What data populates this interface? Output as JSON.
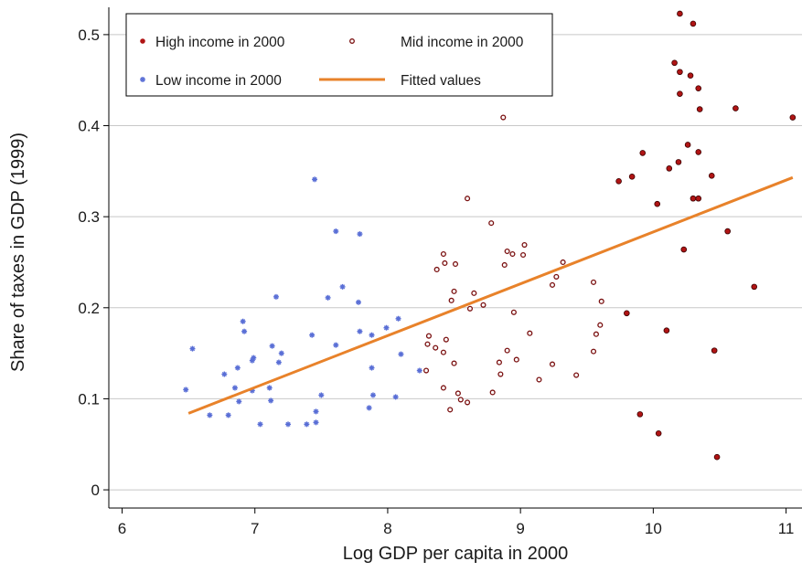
{
  "chart_data": {
    "type": "scatter",
    "xlabel": "Log GDP per capita in 2000",
    "ylabel": "Share of taxes in GDP (1999)",
    "xlim": [
      5.9,
      11.12
    ],
    "ylim": [
      -0.02,
      0.53
    ],
    "xticks": [
      "6",
      "7",
      "8",
      "9",
      "10",
      "11"
    ],
    "yticks": [
      "0",
      "0.1",
      "0.2",
      "0.3",
      "0.4",
      "0.5"
    ],
    "grid": "horizontal",
    "legend_position": "top-left",
    "colors": {
      "high": "#b01414",
      "mid": "#7a1010",
      "low": "#5a6fd6",
      "fit": "#e8822a"
    },
    "legend": [
      "High income in 2000",
      "Mid income in 2000",
      "Low income in 2000",
      "Fitted values"
    ],
    "series": [
      {
        "name": "High income in 2000",
        "marker": "filled",
        "points": [
          [
            10.2,
            0.523
          ],
          [
            10.3,
            0.512
          ],
          [
            10.16,
            0.469
          ],
          [
            10.2,
            0.459
          ],
          [
            10.28,
            0.455
          ],
          [
            10.34,
            0.441
          ],
          [
            10.2,
            0.435
          ],
          [
            10.35,
            0.418
          ],
          [
            10.62,
            0.419
          ],
          [
            11.05,
            0.409
          ],
          [
            10.26,
            0.379
          ],
          [
            9.92,
            0.37
          ],
          [
            10.34,
            0.371
          ],
          [
            10.12,
            0.353
          ],
          [
            10.19,
            0.36
          ],
          [
            9.84,
            0.344
          ],
          [
            10.44,
            0.345
          ],
          [
            9.74,
            0.339
          ],
          [
            10.3,
            0.32
          ],
          [
            10.34,
            0.32
          ],
          [
            10.03,
            0.314
          ],
          [
            10.56,
            0.284
          ],
          [
            10.23,
            0.264
          ],
          [
            10.76,
            0.223
          ],
          [
            9.8,
            0.194
          ],
          [
            10.1,
            0.175
          ],
          [
            10.46,
            0.153
          ],
          [
            9.9,
            0.083
          ],
          [
            10.04,
            0.062
          ],
          [
            10.48,
            0.036
          ]
        ]
      },
      {
        "name": "Mid income in 2000",
        "marker": "hollow",
        "points": [
          [
            8.87,
            0.409
          ],
          [
            8.6,
            0.32
          ],
          [
            8.78,
            0.293
          ],
          [
            9.03,
            0.269
          ],
          [
            8.9,
            0.262
          ],
          [
            8.94,
            0.259
          ],
          [
            9.02,
            0.258
          ],
          [
            8.42,
            0.259
          ],
          [
            8.43,
            0.249
          ],
          [
            8.51,
            0.248
          ],
          [
            8.88,
            0.247
          ],
          [
            8.37,
            0.242
          ],
          [
            9.32,
            0.25
          ],
          [
            9.27,
            0.234
          ],
          [
            9.24,
            0.225
          ],
          [
            9.55,
            0.228
          ],
          [
            8.5,
            0.218
          ],
          [
            8.65,
            0.216
          ],
          [
            8.48,
            0.208
          ],
          [
            9.61,
            0.207
          ],
          [
            8.72,
            0.203
          ],
          [
            8.62,
            0.199
          ],
          [
            8.95,
            0.195
          ],
          [
            9.6,
            0.181
          ],
          [
            9.07,
            0.172
          ],
          [
            9.57,
            0.171
          ],
          [
            8.31,
            0.169
          ],
          [
            8.44,
            0.165
          ],
          [
            8.3,
            0.16
          ],
          [
            8.36,
            0.156
          ],
          [
            8.42,
            0.151
          ],
          [
            8.9,
            0.153
          ],
          [
            9.55,
            0.152
          ],
          [
            8.97,
            0.143
          ],
          [
            8.84,
            0.14
          ],
          [
            8.5,
            0.139
          ],
          [
            9.24,
            0.138
          ],
          [
            8.29,
            0.131
          ],
          [
            8.85,
            0.127
          ],
          [
            9.42,
            0.126
          ],
          [
            9.14,
            0.121
          ],
          [
            8.42,
            0.112
          ],
          [
            8.79,
            0.107
          ],
          [
            8.53,
            0.106
          ],
          [
            8.55,
            0.099
          ],
          [
            8.6,
            0.096
          ],
          [
            8.47,
            0.088
          ]
        ]
      },
      {
        "name": "Low income in 2000",
        "marker": "star",
        "points": [
          [
            7.45,
            0.341
          ],
          [
            7.61,
            0.284
          ],
          [
            7.79,
            0.281
          ],
          [
            7.66,
            0.223
          ],
          [
            7.16,
            0.212
          ],
          [
            7.55,
            0.211
          ],
          [
            7.78,
            0.206
          ],
          [
            8.08,
            0.188
          ],
          [
            6.91,
            0.185
          ],
          [
            7.99,
            0.178
          ],
          [
            7.79,
            0.174
          ],
          [
            6.92,
            0.174
          ],
          [
            7.43,
            0.17
          ],
          [
            7.88,
            0.17
          ],
          [
            7.61,
            0.159
          ],
          [
            7.13,
            0.158
          ],
          [
            6.53,
            0.155
          ],
          [
            7.2,
            0.15
          ],
          [
            8.1,
            0.149
          ],
          [
            7.18,
            0.14
          ],
          [
            6.99,
            0.145
          ],
          [
            6.98,
            0.142
          ],
          [
            6.87,
            0.134
          ],
          [
            7.88,
            0.134
          ],
          [
            8.24,
            0.131
          ],
          [
            6.77,
            0.127
          ],
          [
            6.85,
            0.112
          ],
          [
            7.11,
            0.112
          ],
          [
            6.48,
            0.11
          ],
          [
            6.98,
            0.109
          ],
          [
            7.89,
            0.104
          ],
          [
            7.5,
            0.104
          ],
          [
            8.06,
            0.102
          ],
          [
            7.12,
            0.098
          ],
          [
            6.88,
            0.097
          ],
          [
            7.86,
            0.09
          ],
          [
            7.46,
            0.086
          ],
          [
            6.66,
            0.082
          ],
          [
            6.8,
            0.082
          ],
          [
            7.46,
            0.074
          ],
          [
            7.04,
            0.072
          ],
          [
            7.25,
            0.072
          ],
          [
            7.39,
            0.072
          ]
        ]
      },
      {
        "name": "Fitted values",
        "type": "line",
        "x": [
          6.5,
          11.05
        ],
        "y": [
          0.084,
          0.343
        ]
      }
    ]
  }
}
